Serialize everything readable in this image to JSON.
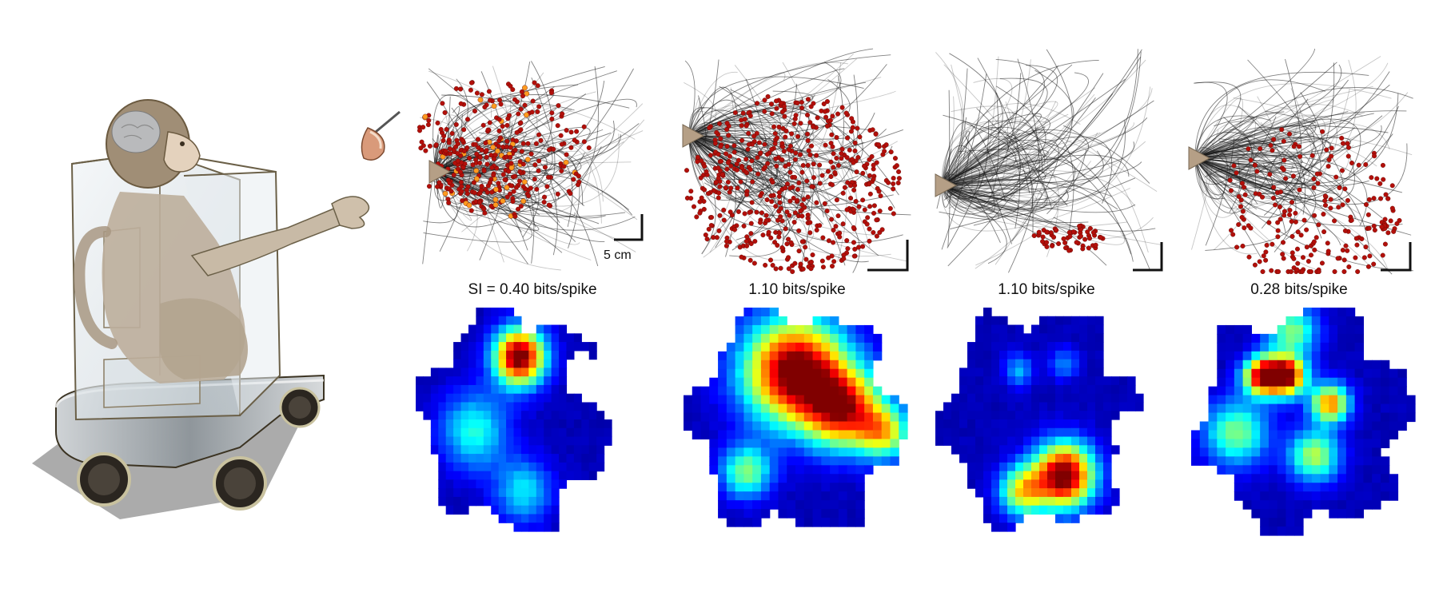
{
  "panels": [
    {
      "id": "cell-1",
      "si_label": "SI = 0.40 bits/spike",
      "scale_label": "5 cm"
    },
    {
      "id": "cell-2",
      "si_label": "1.10 bits/spike"
    },
    {
      "id": "cell-3",
      "si_label": "1.10 bits/spike"
    },
    {
      "id": "cell-4",
      "si_label": "0.28 bits/spike"
    }
  ],
  "colors": {
    "trajectory": "#1a1a1a",
    "spike": "#b30f0a",
    "spike_hot": "#ff9a1f",
    "feeder": "#b59f86",
    "heatmap_low": "#00008f",
    "heatmap_high": "#8f0000",
    "monkey": "#b8a996",
    "cage": "#dfe6ea"
  }
}
